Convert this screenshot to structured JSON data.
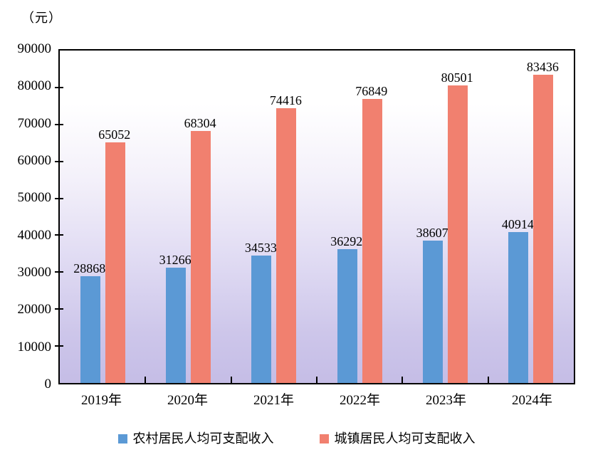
{
  "chart_data": {
    "type": "bar",
    "title": "",
    "unit_label": "（元）",
    "categories": [
      "2019年",
      "2020年",
      "2021年",
      "2022年",
      "2023年",
      "2024年"
    ],
    "series": [
      {
        "name": "农村居民人均可支配收入",
        "color": "#5B99D5",
        "values": [
          28868,
          31266,
          34533,
          36292,
          38607,
          40914
        ]
      },
      {
        "name": "城镇居民人均可支配收入",
        "color": "#F1806F",
        "values": [
          65052,
          68304,
          74416,
          76849,
          80501,
          83436
        ]
      }
    ],
    "xlabel": "",
    "ylabel": "",
    "ylim": [
      0,
      90000
    ],
    "y_ticks": [
      0,
      10000,
      20000,
      30000,
      40000,
      50000,
      60000,
      70000,
      80000,
      90000
    ],
    "grid": false,
    "data_labels": true,
    "legend_position": "bottom",
    "plot_background_gradient": {
      "top": "#FFFFFF",
      "bottom": "#C5BDE6"
    },
    "axis_color": "#000000",
    "text_color": "#000000"
  }
}
